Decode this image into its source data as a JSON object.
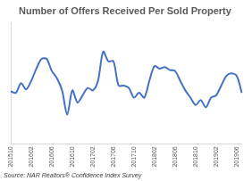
{
  "chart_data": {
    "type": "line",
    "title": "Number of Offers Received Per Sold Property",
    "annotations": [
      "Source: NAR Realtors® Confidence Index Survey"
    ],
    "categories": [
      "201510",
      null,
      null,
      null,
      "201602",
      null,
      null,
      null,
      "201606",
      null,
      null,
      null,
      "201610",
      null,
      null,
      null,
      "201702",
      null,
      null,
      null,
      "201706",
      null,
      null,
      null,
      "201710",
      null,
      null,
      null,
      "201802",
      null,
      null,
      null,
      "201806",
      null,
      null,
      null,
      "201810",
      null,
      null,
      null,
      "201902",
      null,
      null,
      null,
      "201906",
      null
    ],
    "values": [
      3.08,
      3.05,
      3.25,
      3.12,
      3.3,
      3.55,
      3.75,
      3.75,
      3.5,
      3.35,
      3.1,
      2.6,
      3.1,
      2.85,
      3.0,
      3.15,
      3.1,
      3.3,
      3.9,
      3.7,
      3.7,
      3.2,
      3.2,
      3.15,
      2.95,
      3.05,
      2.95,
      3.3,
      3.6,
      3.55,
      3.58,
      3.52,
      3.5,
      3.3,
      3.1,
      2.95,
      2.8,
      2.9,
      2.75,
      2.95,
      3.0,
      3.2,
      3.4,
      3.45,
      3.4,
      3.05
    ],
    "color": "#4472c4",
    "ylim": [
      2.0,
      4.5
    ],
    "grid": false,
    "tick_labels": "x"
  }
}
